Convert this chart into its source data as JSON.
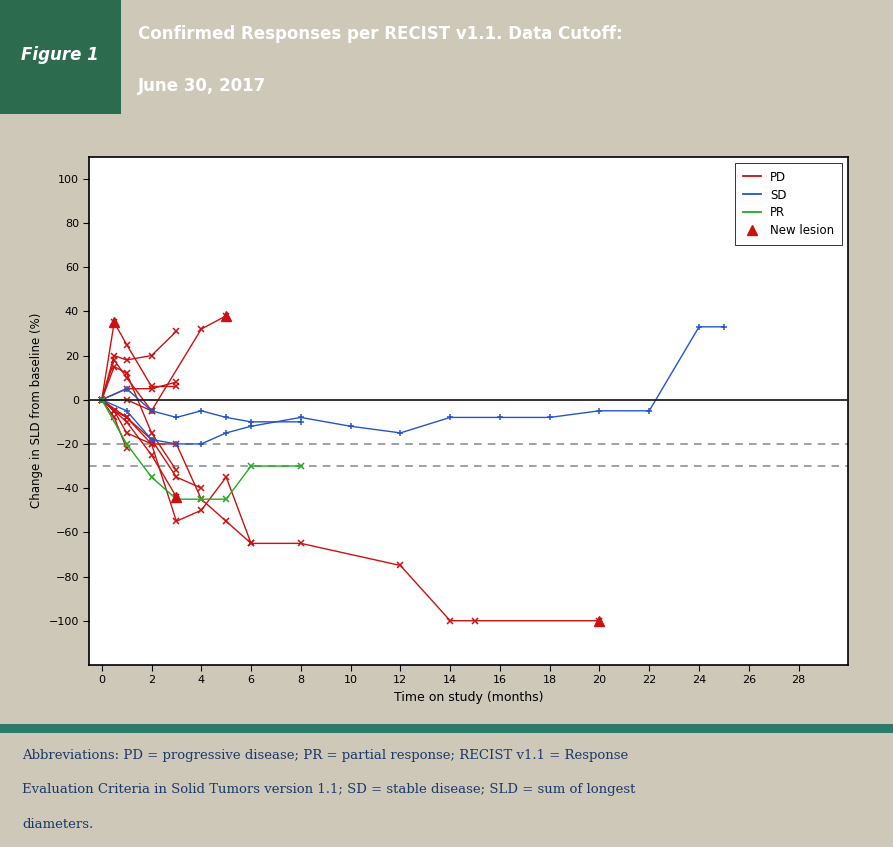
{
  "title_box_dark": "#2d6b4f",
  "header_bg": "#4e9474",
  "background_outer": "#cec8b8",
  "background_inner": "#ffffff",
  "footnote_bg": "#f5f2eb",
  "teal_separator": "#2d7a6a",
  "pd_color": "#cc1111",
  "sd_color": "#2255cc",
  "pr_color": "#22aa22",
  "xlabel": "Time on study (months)",
  "ylabel": "Change in SLD from baseline (%)",
  "xlim": [
    -0.5,
    30
  ],
  "ylim": [
    -120,
    110
  ],
  "xticks": [
    0,
    2,
    4,
    6,
    8,
    10,
    12,
    14,
    16,
    18,
    20,
    22,
    24,
    26,
    28
  ],
  "yticks": [
    -100,
    -80,
    -60,
    -40,
    -20,
    0,
    20,
    40,
    60,
    80,
    100
  ],
  "hline_dashed1": -20,
  "hline_dashed2": -30,
  "pd_lines": [
    {
      "x": [
        0,
        0.5,
        1,
        2,
        3
      ],
      "y": [
        0,
        35,
        25,
        6,
        6
      ],
      "new_lesion_idx": [
        1
      ]
    },
    {
      "x": [
        0,
        0.5,
        1,
        2,
        3
      ],
      "y": [
        0,
        20,
        18,
        20,
        31
      ],
      "new_lesion_idx": []
    },
    {
      "x": [
        0,
        0.5,
        1,
        2,
        3
      ],
      "y": [
        0,
        15,
        12,
        -15,
        -32
      ],
      "new_lesion_idx": []
    },
    {
      "x": [
        0,
        0.5,
        1,
        2,
        3,
        4,
        5,
        6
      ],
      "y": [
        0,
        -5,
        -8,
        -20,
        -20,
        -45,
        -55,
        -65
      ],
      "new_lesion_idx": []
    },
    {
      "x": [
        0,
        0.5,
        1,
        2,
        3,
        4,
        5,
        6,
        8,
        12,
        14,
        15,
        20
      ],
      "y": [
        0,
        -5,
        -15,
        -20,
        -55,
        -50,
        -35,
        -65,
        -65,
        -75,
        -100,
        -100,
        -100
      ],
      "new_lesion_idx": [
        12
      ]
    },
    {
      "x": [
        0,
        1,
        2,
        3
      ],
      "y": [
        0,
        5,
        5,
        8
      ],
      "new_lesion_idx": []
    },
    {
      "x": [
        0,
        0.5,
        1,
        2
      ],
      "y": [
        0,
        18,
        10,
        -5
      ],
      "new_lesion_idx": []
    },
    {
      "x": [
        0,
        0.5,
        1,
        2,
        3
      ],
      "y": [
        0,
        -5,
        -10,
        -25,
        -44
      ],
      "new_lesion_idx": [
        4
      ]
    },
    {
      "x": [
        0,
        1,
        2,
        3,
        4
      ],
      "y": [
        0,
        -8,
        -18,
        -35,
        -40
      ],
      "new_lesion_idx": []
    },
    {
      "x": [
        0,
        0.5,
        1
      ],
      "y": [
        0,
        -8,
        -22
      ],
      "new_lesion_idx": []
    },
    {
      "x": [
        0,
        1,
        2,
        4,
        5
      ],
      "y": [
        0,
        0,
        -5,
        32,
        38
      ],
      "new_lesion_idx": [
        4
      ]
    }
  ],
  "sd_lines": [
    {
      "x": [
        0,
        1,
        2,
        3,
        4,
        5,
        6,
        8,
        10,
        12,
        14,
        16,
        18,
        20,
        22,
        24,
        25
      ],
      "y": [
        0,
        -5,
        -18,
        -20,
        -20,
        -15,
        -12,
        -8,
        -12,
        -15,
        -8,
        -8,
        -8,
        -5,
        -5,
        33,
        33
      ]
    },
    {
      "x": [
        0,
        1,
        2,
        3,
        4,
        5,
        6,
        8
      ],
      "y": [
        0,
        5,
        -5,
        -8,
        -5,
        -8,
        -10,
        -10
      ]
    }
  ],
  "pr_lines": [
    {
      "x": [
        0,
        1,
        2,
        3,
        4,
        5,
        6,
        8
      ],
      "y": [
        0,
        -20,
        -35,
        -45,
        -45,
        -45,
        -30,
        -30
      ]
    }
  ]
}
